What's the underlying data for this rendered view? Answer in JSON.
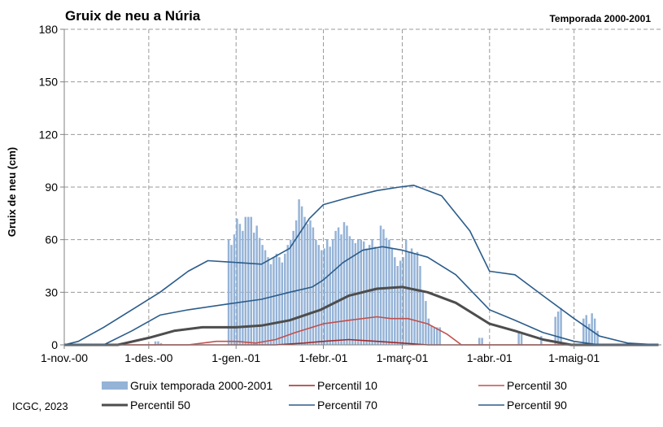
{
  "chart_data": {
    "type": "bar",
    "title": "Gruix de neu a Núria",
    "subtitle": "Temporada 2000-2001",
    "ylabel": "Gruix de neu (cm)",
    "xlabel": "",
    "ylim": [
      0,
      180
    ],
    "xlim": [
      "2000-11-01",
      "2001-05-31"
    ],
    "yticks": [
      0,
      30,
      60,
      90,
      120,
      150,
      180
    ],
    "xticks": [
      {
        "date": "2000-11-01",
        "label": "1-nov.-00"
      },
      {
        "date": "2000-12-01",
        "label": "1-des.-00"
      },
      {
        "date": "2001-01-01",
        "label": "1-gen.-01"
      },
      {
        "date": "2001-02-01",
        "label": "1-febr.-01"
      },
      {
        "date": "2001-03-01",
        "label": "1-març-01"
      },
      {
        "date": "2001-04-01",
        "label": "1-abr.-01"
      },
      {
        "date": "2001-05-01",
        "label": "1-maig-01"
      }
    ],
    "grid": true,
    "legend_position": "bottom",
    "bars": {
      "name": "Gruix temporada 2000-2001",
      "color": "#95b3d7",
      "values": [
        [
          "2000-12-03",
          2
        ],
        [
          "2000-12-04",
          2
        ],
        [
          "2000-12-05",
          1
        ],
        [
          "2000-12-29",
          60
        ],
        [
          "2000-12-30",
          57
        ],
        [
          "2000-12-31",
          63
        ],
        [
          "2001-01-01",
          72
        ],
        [
          "2001-01-02",
          69
        ],
        [
          "2001-01-03",
          65
        ],
        [
          "2001-01-04",
          73
        ],
        [
          "2001-01-05",
          73
        ],
        [
          "2001-01-06",
          73
        ],
        [
          "2001-01-07",
          64
        ],
        [
          "2001-01-08",
          68
        ],
        [
          "2001-01-09",
          61
        ],
        [
          "2001-01-10",
          57
        ],
        [
          "2001-01-11",
          54
        ],
        [
          "2001-01-12",
          50
        ],
        [
          "2001-01-13",
          46
        ],
        [
          "2001-01-14",
          50
        ],
        [
          "2001-01-15",
          52
        ],
        [
          "2001-01-16",
          50
        ],
        [
          "2001-01-17",
          47
        ],
        [
          "2001-01-18",
          52
        ],
        [
          "2001-01-19",
          57
        ],
        [
          "2001-01-20",
          60
        ],
        [
          "2001-01-21",
          65
        ],
        [
          "2001-01-22",
          71
        ],
        [
          "2001-01-23",
          83
        ],
        [
          "2001-01-24",
          79
        ],
        [
          "2001-01-25",
          73
        ],
        [
          "2001-01-26",
          69
        ],
        [
          "2001-01-27",
          71
        ],
        [
          "2001-01-28",
          67
        ],
        [
          "2001-01-29",
          60
        ],
        [
          "2001-01-30",
          57
        ],
        [
          "2001-01-31",
          54
        ],
        [
          "2001-02-01",
          55
        ],
        [
          "2001-02-02",
          60
        ],
        [
          "2001-02-03",
          56
        ],
        [
          "2001-02-04",
          60
        ],
        [
          "2001-02-05",
          65
        ],
        [
          "2001-02-06",
          67
        ],
        [
          "2001-02-07",
          63
        ],
        [
          "2001-02-08",
          70
        ],
        [
          "2001-02-09",
          68
        ],
        [
          "2001-02-10",
          62
        ],
        [
          "2001-02-11",
          60
        ],
        [
          "2001-02-12",
          58
        ],
        [
          "2001-02-13",
          60
        ],
        [
          "2001-02-14",
          60
        ],
        [
          "2001-02-15",
          59
        ],
        [
          "2001-02-16",
          55
        ],
        [
          "2001-02-17",
          57
        ],
        [
          "2001-02-18",
          60
        ],
        [
          "2001-02-19",
          56
        ],
        [
          "2001-02-20",
          55
        ],
        [
          "2001-02-21",
          68
        ],
        [
          "2001-02-22",
          66
        ],
        [
          "2001-02-23",
          61
        ],
        [
          "2001-02-24",
          60
        ],
        [
          "2001-02-25",
          55
        ],
        [
          "2001-02-26",
          50
        ],
        [
          "2001-02-27",
          45
        ],
        [
          "2001-02-28",
          48
        ],
        [
          "2001-03-01",
          50
        ],
        [
          "2001-03-02",
          60
        ],
        [
          "2001-03-03",
          53
        ],
        [
          "2001-03-04",
          55
        ],
        [
          "2001-03-05",
          52
        ],
        [
          "2001-03-06",
          53
        ],
        [
          "2001-03-07",
          45
        ],
        [
          "2001-03-08",
          30
        ],
        [
          "2001-03-09",
          25
        ],
        [
          "2001-03-10",
          15
        ],
        [
          "2001-03-11",
          11
        ],
        [
          "2001-03-12",
          10
        ],
        [
          "2001-03-13",
          10
        ],
        [
          "2001-03-14",
          10
        ],
        [
          "2001-03-28",
          4
        ],
        [
          "2001-03-29",
          4
        ],
        [
          "2001-04-11",
          7
        ],
        [
          "2001-04-12",
          6
        ],
        [
          "2001-04-19",
          5
        ],
        [
          "2001-04-24",
          16
        ],
        [
          "2001-04-25",
          19
        ],
        [
          "2001-04-26",
          21
        ],
        [
          "2001-05-04",
          15
        ],
        [
          "2001-05-05",
          17
        ],
        [
          "2001-05-06",
          12
        ],
        [
          "2001-05-07",
          18
        ],
        [
          "2001-05-08",
          15
        ],
        [
          "2001-05-09",
          8
        ]
      ]
    },
    "series": [
      {
        "name": "Percentil 10",
        "color": "#9e2a2b",
        "width": 1.6,
        "points": [
          [
            "2000-11-01",
            0
          ],
          [
            "2001-01-15",
            0
          ],
          [
            "2001-01-25",
            1
          ],
          [
            "2001-02-01",
            2
          ],
          [
            "2001-02-10",
            3
          ],
          [
            "2001-02-20",
            2
          ],
          [
            "2001-03-01",
            1
          ],
          [
            "2001-03-10",
            0
          ],
          [
            "2001-05-31",
            0
          ]
        ]
      },
      {
        "name": "Percentil 30",
        "color": "#c0504d",
        "width": 1.6,
        "points": [
          [
            "2000-11-01",
            0
          ],
          [
            "2000-12-15",
            0
          ],
          [
            "2000-12-25",
            2
          ],
          [
            "2001-01-01",
            2
          ],
          [
            "2001-01-08",
            1
          ],
          [
            "2001-01-15",
            3
          ],
          [
            "2001-01-22",
            7
          ],
          [
            "2001-02-01",
            12
          ],
          [
            "2001-02-10",
            14
          ],
          [
            "2001-02-20",
            16
          ],
          [
            "2001-02-25",
            15
          ],
          [
            "2001-03-03",
            15
          ],
          [
            "2001-03-10",
            12
          ],
          [
            "2001-03-17",
            6
          ],
          [
            "2001-03-22",
            0
          ],
          [
            "2001-05-31",
            0
          ]
        ]
      },
      {
        "name": "Percentil 50",
        "color": "#4d4d4d",
        "width": 3,
        "points": [
          [
            "2000-11-01",
            0
          ],
          [
            "2000-11-20",
            0
          ],
          [
            "2000-12-01",
            4
          ],
          [
            "2000-12-10",
            8
          ],
          [
            "2000-12-20",
            10
          ],
          [
            "2001-01-01",
            10
          ],
          [
            "2001-01-10",
            11
          ],
          [
            "2001-01-20",
            14
          ],
          [
            "2001-01-31",
            20
          ],
          [
            "2001-02-10",
            28
          ],
          [
            "2001-02-20",
            32
          ],
          [
            "2001-03-01",
            33
          ],
          [
            "2001-03-10",
            30
          ],
          [
            "2001-03-20",
            24
          ],
          [
            "2001-04-01",
            12
          ],
          [
            "2001-04-10",
            8
          ],
          [
            "2001-04-20",
            3
          ],
          [
            "2001-04-30",
            0
          ],
          [
            "2001-05-31",
            0
          ]
        ]
      },
      {
        "name": "Percentil 70",
        "color": "#2b5c8a",
        "width": 1.6,
        "points": [
          [
            "2000-11-01",
            0
          ],
          [
            "2000-11-15",
            0
          ],
          [
            "2000-11-25",
            8
          ],
          [
            "2000-12-05",
            17
          ],
          [
            "2000-12-15",
            20
          ],
          [
            "2001-01-01",
            24
          ],
          [
            "2001-01-10",
            26
          ],
          [
            "2001-01-20",
            30
          ],
          [
            "2001-01-28",
            33
          ],
          [
            "2001-02-01",
            37
          ],
          [
            "2001-02-08",
            47
          ],
          [
            "2001-02-15",
            54
          ],
          [
            "2001-02-22",
            56
          ],
          [
            "2001-03-01",
            54
          ],
          [
            "2001-03-10",
            50
          ],
          [
            "2001-03-20",
            40
          ],
          [
            "2001-04-01",
            20
          ],
          [
            "2001-04-10",
            14
          ],
          [
            "2001-04-20",
            7
          ],
          [
            "2001-05-01",
            2
          ],
          [
            "2001-05-10",
            0
          ],
          [
            "2001-05-31",
            0
          ]
        ]
      },
      {
        "name": "Percentil 90",
        "color": "#2b5c8a",
        "width": 1.6,
        "points": [
          [
            "2000-11-01",
            0
          ],
          [
            "2000-11-06",
            2
          ],
          [
            "2000-11-15",
            10
          ],
          [
            "2000-11-25",
            20
          ],
          [
            "2000-12-05",
            30
          ],
          [
            "2000-12-15",
            42
          ],
          [
            "2000-12-22",
            48
          ],
          [
            "2001-01-01",
            47
          ],
          [
            "2001-01-10",
            46
          ],
          [
            "2001-01-20",
            55
          ],
          [
            "2001-01-27",
            72
          ],
          [
            "2001-02-01",
            80
          ],
          [
            "2001-02-10",
            84
          ],
          [
            "2001-02-20",
            88
          ],
          [
            "2001-02-28",
            90
          ],
          [
            "2001-03-05",
            91
          ],
          [
            "2001-03-15",
            85
          ],
          [
            "2001-03-25",
            65
          ],
          [
            "2001-04-01",
            42
          ],
          [
            "2001-04-10",
            40
          ],
          [
            "2001-04-20",
            28
          ],
          [
            "2001-05-01",
            15
          ],
          [
            "2001-05-10",
            5
          ],
          [
            "2001-05-20",
            1
          ],
          [
            "2001-05-31",
            0
          ]
        ]
      }
    ],
    "legend": [
      {
        "key": "bars",
        "label": "Gruix temporada 2000-2001"
      },
      {
        "key": 0,
        "label": "Percentil 10"
      },
      {
        "key": 1,
        "label": "Percentil 30"
      },
      {
        "key": 2,
        "label": "Percentil 50"
      },
      {
        "key": 3,
        "label": "Percentil 70"
      },
      {
        "key": 4,
        "label": "Percentil 90"
      }
    ],
    "credit": "ICGC, 2023"
  }
}
